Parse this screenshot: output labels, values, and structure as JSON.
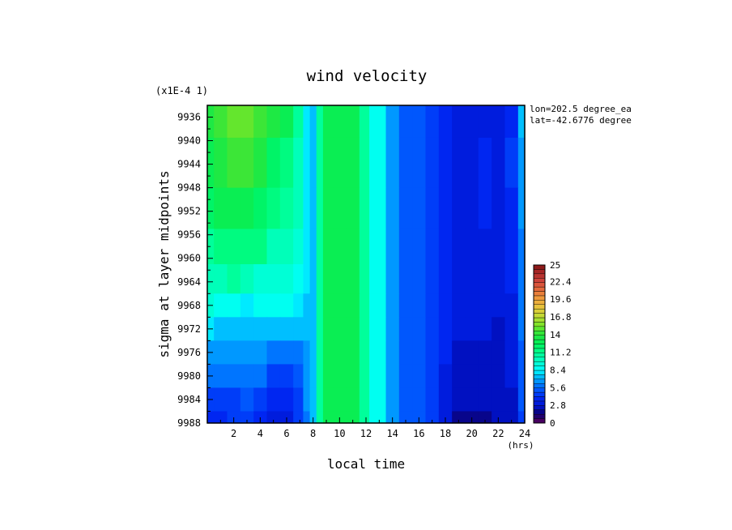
{
  "chart_data": {
    "type": "heatmap",
    "title": "wind velocity",
    "multiplier_label": "(x1E-4 1)",
    "xlabel": "local time",
    "xunit": "(hrs)",
    "ylabel": "sigma at layer midpoints",
    "xlim": [
      0,
      24
    ],
    "ylim": [
      9988,
      9934
    ],
    "x_ticks": [
      "2",
      "4",
      "6",
      "8",
      "10",
      "12",
      "14",
      "16",
      "18",
      "20",
      "22",
      "24"
    ],
    "y_ticks": [
      "9936",
      "9940",
      "9944",
      "9948",
      "9952",
      "9956",
      "9960",
      "9964",
      "9968",
      "9972",
      "9976",
      "9980",
      "9984",
      "9988"
    ],
    "annotation": [
      "lon=202.5 degree_ea",
      "lat=-42.6776 degree"
    ],
    "colorbar": {
      "range": [
        0,
        25
      ],
      "labels": [
        "25",
        "22.4",
        "19.6",
        "16.8",
        "14",
        "11.2",
        "8.4",
        "5.6",
        "2.8",
        "0"
      ]
    },
    "x": [
      0,
      1,
      2,
      3,
      4,
      5,
      6,
      7,
      7.5,
      8,
      8.5,
      9,
      10,
      11,
      12,
      12.5,
      13,
      14,
      15,
      16,
      17,
      18,
      19,
      20,
      21,
      22,
      23,
      24
    ],
    "y": [
      9935,
      9944,
      9952,
      9958,
      9964,
      9968,
      9972,
      9976,
      9980,
      9984,
      9988
    ],
    "z": [
      [
        13.5,
        14.2,
        14.8,
        15.0,
        14.5,
        13.8,
        13.0,
        11.0,
        8.0,
        7.5,
        11.0,
        12.8,
        13.0,
        12.6,
        10.5,
        9.0,
        8.5,
        6.5,
        5.5,
        5.0,
        4.5,
        3.5,
        3.0,
        3.0,
        3.3,
        3.3,
        4.0,
        7.0
      ],
      [
        12.8,
        13.6,
        14.0,
        14.2,
        13.5,
        12.5,
        11.5,
        10.0,
        8.0,
        7.5,
        11.0,
        12.8,
        13.0,
        12.6,
        10.5,
        9.0,
        8.5,
        6.5,
        5.5,
        5.0,
        4.5,
        3.5,
        3.0,
        3.0,
        3.5,
        3.0,
        4.2,
        6.8
      ],
      [
        12.0,
        12.6,
        13.0,
        13.2,
        12.5,
        11.5,
        10.8,
        10.0,
        8.0,
        7.5,
        11.0,
        12.8,
        13.0,
        12.6,
        10.5,
        9.0,
        8.5,
        6.5,
        5.5,
        5.0,
        4.5,
        3.5,
        3.0,
        3.0,
        3.5,
        3.0,
        4.0,
        6.5
      ],
      [
        11.0,
        11.5,
        11.8,
        11.8,
        11.2,
        10.2,
        10.0,
        9.5,
        8.0,
        7.5,
        11.0,
        12.8,
        13.0,
        12.6,
        10.5,
        9.0,
        8.5,
        6.5,
        5.5,
        5.0,
        4.5,
        3.5,
        3.0,
        3.0,
        3.4,
        3.0,
        3.8,
        6.2
      ],
      [
        10.2,
        10.4,
        10.5,
        10.0,
        9.5,
        9.5,
        9.2,
        9.0,
        8.0,
        7.5,
        11.0,
        12.8,
        13.0,
        12.6,
        10.5,
        9.0,
        8.5,
        6.5,
        5.5,
        5.0,
        4.5,
        3.5,
        3.0,
        3.0,
        3.2,
        3.0,
        3.6,
        6.0
      ],
      [
        9.2,
        9.0,
        8.8,
        8.2,
        8.5,
        9.0,
        8.5,
        8.0,
        7.5,
        7.5,
        11.0,
        12.8,
        13.0,
        12.6,
        10.5,
        9.0,
        8.5,
        6.5,
        5.5,
        5.0,
        4.5,
        3.5,
        3.0,
        3.0,
        3.0,
        2.8,
        3.4,
        5.8
      ],
      [
        8.0,
        7.6,
        7.2,
        7.0,
        7.5,
        7.6,
        7.4,
        7.2,
        7.0,
        7.5,
        11.0,
        12.8,
        13.0,
        12.6,
        10.5,
        9.0,
        8.5,
        6.5,
        5.5,
        5.0,
        4.5,
        3.5,
        2.8,
        2.8,
        2.8,
        2.6,
        3.2,
        5.6
      ],
      [
        6.8,
        6.6,
        6.4,
        6.4,
        6.6,
        6.0,
        5.6,
        5.8,
        6.8,
        7.5,
        11.0,
        12.8,
        13.0,
        12.6,
        10.5,
        9.0,
        8.5,
        6.5,
        5.5,
        5.0,
        4.5,
        3.5,
        2.6,
        2.6,
        2.6,
        2.5,
        3.0,
        5.4
      ],
      [
        5.6,
        5.6,
        5.6,
        5.8,
        5.6,
        4.6,
        4.4,
        5.2,
        6.6,
        7.5,
        11.0,
        12.8,
        13.0,
        12.6,
        10.5,
        9.0,
        8.5,
        6.5,
        5.5,
        5.0,
        4.5,
        3.3,
        2.4,
        2.4,
        2.4,
        2.4,
        2.8,
        5.2
      ],
      [
        4.6,
        4.6,
        4.8,
        5.0,
        4.4,
        3.6,
        3.8,
        4.8,
        6.4,
        7.5,
        11.0,
        12.8,
        13.0,
        12.6,
        10.5,
        9.0,
        8.5,
        6.5,
        5.5,
        5.0,
        4.5,
        3.2,
        2.2,
        2.2,
        2.2,
        2.3,
        2.6,
        5.0
      ],
      [
        4.0,
        4.0,
        4.2,
        4.4,
        3.8,
        3.0,
        3.4,
        4.4,
        6.2,
        7.5,
        11.0,
        12.8,
        13.0,
        12.6,
        10.5,
        9.0,
        8.5,
        6.5,
        5.5,
        5.0,
        4.5,
        3.0,
        2.0,
        2.0,
        2.0,
        2.2,
        2.5,
        4.8
      ]
    ]
  }
}
